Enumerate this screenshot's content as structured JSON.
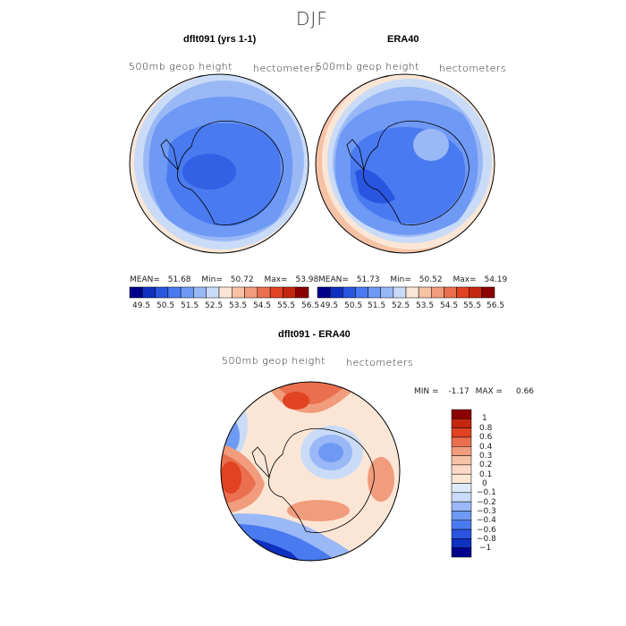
{
  "header": {
    "title": "DJF"
  },
  "palette": [
    "#00008b",
    "#1030c0",
    "#2a55e0",
    "#4a7af0",
    "#6e99f4",
    "#9ab8f6",
    "#c9dbf7",
    "#fbe6d6",
    "#f6c2a6",
    "#f19c7c",
    "#ea6f4e",
    "#e04222",
    "#c42610",
    "#8b0000"
  ],
  "chart_data": [
    {
      "type": "polar-contour-map",
      "title": "dflt091 (yrs 1-1)",
      "subtitle_left": "500mb geop height",
      "subtitle_right": "hectometers",
      "stats": {
        "mean_label": "MEAN=",
        "mean": "51.68",
        "min_label": "Min=",
        "min": "50.72",
        "max_label": "Max=",
        "max": "53.98"
      },
      "colorbar_ticks": [
        "49.5",
        "50.5",
        "51.5",
        "52.5",
        "53.5",
        "54.5",
        "55.5",
        "56.5"
      ]
    },
    {
      "type": "polar-contour-map",
      "title": "ERA40",
      "subtitle_left": "500mb geop height",
      "subtitle_right": "hectometers",
      "stats": {
        "mean_label": "MEAN=",
        "mean": "51.73",
        "min_label": "Min=",
        "min": "50.52",
        "max_label": "Max=",
        "max": "54.19"
      },
      "colorbar_ticks": [
        "49.5",
        "50.5",
        "51.5",
        "52.5",
        "53.5",
        "54.5",
        "55.5",
        "56.5"
      ]
    },
    {
      "type": "polar-contour-map",
      "title": "dflt091 - ERA40",
      "subtitle_left": "500mb geop height",
      "subtitle_right": "hectometers",
      "stats": {
        "min_label": "MIN =",
        "min": "-1.17",
        "max_label": "MAX =",
        "max": "0.66"
      },
      "colorbar_ticks": [
        "1",
        "0.8",
        "0.6",
        "0.4",
        "0.3",
        "0.2",
        "0.1",
        "0",
        "−0.1",
        "−0.2",
        "−0.3",
        "−0.4",
        "−0.6",
        "−0.8",
        "−1"
      ]
    }
  ]
}
